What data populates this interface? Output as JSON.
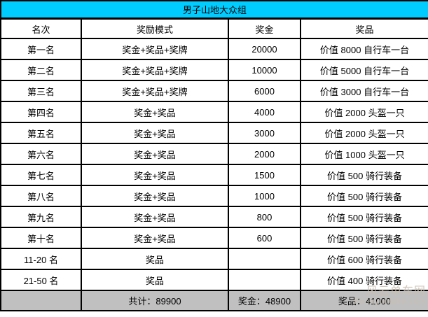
{
  "title": "男子山地大众组",
  "colors": {
    "title_bg": "#00ccff",
    "footer_bg": "#c0c0c0",
    "border": "#000000",
    "watermark": "#c9bfb4"
  },
  "table": {
    "headers": [
      "名次",
      "奖励模式",
      "奖金",
      "奖品"
    ],
    "rows": [
      {
        "rank": "第一名",
        "mode": "奖金+奖品+奖牌",
        "money": "20000",
        "prize": "价值 8000 自行车一台"
      },
      {
        "rank": "第二名",
        "mode": "奖金+奖品+奖牌",
        "money": "10000",
        "prize": "价值 5000 自行车一台"
      },
      {
        "rank": "第三名",
        "mode": "奖金+奖品+奖牌",
        "money": "6000",
        "prize": "价值 3000 自行车一台"
      },
      {
        "rank": "第四名",
        "mode": "奖金+奖品",
        "money": "4000",
        "prize": "价值 2000 头盔一只"
      },
      {
        "rank": "第五名",
        "mode": "奖金+奖品",
        "money": "3000",
        "prize": "价值 2000 头盔一只"
      },
      {
        "rank": "第六名",
        "mode": "奖金+奖品",
        "money": "2000",
        "prize": "价值 1000 头盔一只"
      },
      {
        "rank": "第七名",
        "mode": "奖金+奖品",
        "money": "1500",
        "prize": "价值 500 骑行装备"
      },
      {
        "rank": "第八名",
        "mode": "奖金+奖品",
        "money": "1000",
        "prize": "价值 500 骑行装备"
      },
      {
        "rank": "第九名",
        "mode": "奖金+奖品",
        "money": "800",
        "prize": "价值 500 骑行装备"
      },
      {
        "rank": "第十名",
        "mode": "奖金+奖品",
        "money": "600",
        "prize": "价值 500 骑行装备"
      },
      {
        "rank": "11-20 名",
        "mode": "奖品",
        "money": "",
        "prize": "价值 600 骑行装备"
      },
      {
        "rank": "21-50 名",
        "mode": "奖品",
        "money": "",
        "prize": "价值 400 骑行装备"
      }
    ],
    "footer": {
      "rank": "",
      "total": "共计：89900",
      "money_total": "奖金：48900",
      "prize_total": "奖品：41000"
    }
  },
  "watermark": {
    "line1": "风云单车网",
    "line2": "Fengyunbike.com"
  }
}
